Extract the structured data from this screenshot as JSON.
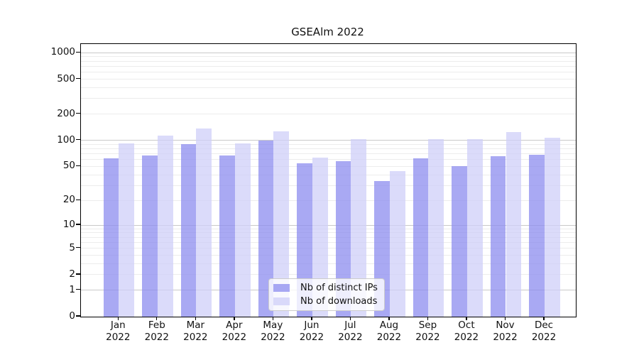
{
  "title": "GSEAlm 2022",
  "chart_data": {
    "type": "bar",
    "title": "GSEAlm 2022",
    "categories": [
      "Jan 2022",
      "Feb 2022",
      "Mar 2022",
      "Apr 2022",
      "May 2022",
      "Jun 2022",
      "Jul 2022",
      "Aug 2022",
      "Sep 2022",
      "Oct 2022",
      "Nov 2022",
      "Dec 2022"
    ],
    "series": [
      {
        "name": "Nb of distinct IPs",
        "color": "#a9a9f3",
        "fill": "rgba(140,140,239,0.75)",
        "values": [
          62,
          67,
          90,
          67,
          100,
          54,
          58,
          34,
          62,
          50,
          66,
          68
        ]
      },
      {
        "name": "Nb of downloads",
        "color": "#dbdbfa",
        "fill": "rgba(207,207,248,0.75)",
        "values": [
          92,
          114,
          137,
          92,
          126,
          63,
          103,
          44,
          104,
          103,
          124,
          108
        ]
      }
    ],
    "yscale": "log1p",
    "ylim": [
      0,
      1250
    ],
    "y_ticks": [
      0,
      1,
      2,
      5,
      10,
      20,
      50,
      100,
      200,
      500,
      1000
    ],
    "xlabel": "",
    "ylabel": "",
    "grid": true,
    "legend_position": "lower-center-inside"
  },
  "grid_colors": {
    "major": "#c9c9c9",
    "minor": "#ececec"
  },
  "axis_colors": {
    "spine": "#000000",
    "tick_label": "#111111"
  },
  "legend_style": {
    "background": "rgba(255,255,255,0.8)",
    "border": "#cccccc"
  }
}
